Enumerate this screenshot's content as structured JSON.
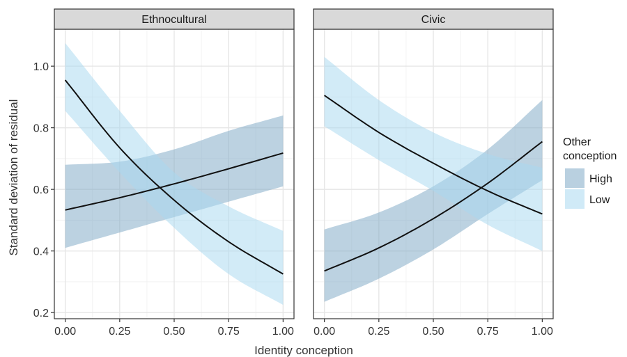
{
  "chart_data": {
    "type": "line",
    "xlabel": "Identity conception",
    "ylabel": "Standard deviation of residual",
    "xlim": [
      -0.05,
      1.05
    ],
    "ylim": [
      0.18,
      1.12
    ],
    "x_ticks": [
      0.0,
      0.25,
      0.5,
      0.75,
      1.0
    ],
    "x_tick_labels": [
      "0.00",
      "0.25",
      "0.50",
      "0.75",
      "1.00"
    ],
    "y_ticks": [
      0.2,
      0.4,
      0.6,
      0.8,
      1.0
    ],
    "y_tick_labels": [
      "0.2",
      "0.4",
      "0.6",
      "0.8",
      "1.0"
    ],
    "grid": true,
    "legend": {
      "title": "Other\nconception",
      "placement": "right",
      "entries": [
        {
          "label": "High",
          "color": "#7fa9c6"
        },
        {
          "label": "Low",
          "color": "#a9d8f0"
        }
      ]
    },
    "panels": [
      {
        "title": "Ethnocultural",
        "series": [
          {
            "name": "High",
            "color": "#7fa9c6",
            "x": [
              0.0,
              0.25,
              0.5,
              0.75,
              1.0
            ],
            "y": [
              0.533,
              0.573,
              0.618,
              0.667,
              0.718
            ],
            "lower": [
              0.41,
              0.46,
              0.51,
              0.56,
              0.61
            ],
            "upper": [
              0.68,
              0.69,
              0.73,
              0.79,
              0.84
            ]
          },
          {
            "name": "Low",
            "color": "#a9d8f0",
            "x": [
              0.0,
              0.25,
              0.5,
              0.75,
              1.0
            ],
            "y": [
              0.955,
              0.735,
              0.565,
              0.43,
              0.325
            ],
            "lower": [
              0.855,
              0.655,
              0.475,
              0.325,
              0.225
            ],
            "upper": [
              1.075,
              0.855,
              0.655,
              0.545,
              0.465
            ]
          }
        ]
      },
      {
        "title": "Civic",
        "series": [
          {
            "name": "High",
            "color": "#7fa9c6",
            "x": [
              0.0,
              0.25,
              0.5,
              0.75,
              1.0
            ],
            "y": [
              0.335,
              0.41,
              0.505,
              0.62,
              0.755
            ],
            "lower": [
              0.235,
              0.31,
              0.405,
              0.52,
              0.63
            ],
            "upper": [
              0.47,
              0.525,
              0.61,
              0.73,
              0.89
            ]
          },
          {
            "name": "Low",
            "color": "#a9d8f0",
            "x": [
              0.0,
              0.25,
              0.5,
              0.75,
              1.0
            ],
            "y": [
              0.905,
              0.785,
              0.685,
              0.595,
              0.52
            ],
            "lower": [
              0.805,
              0.695,
              0.595,
              0.485,
              0.4
            ],
            "upper": [
              1.03,
              0.89,
              0.785,
              0.715,
              0.67
            ]
          }
        ]
      }
    ]
  }
}
